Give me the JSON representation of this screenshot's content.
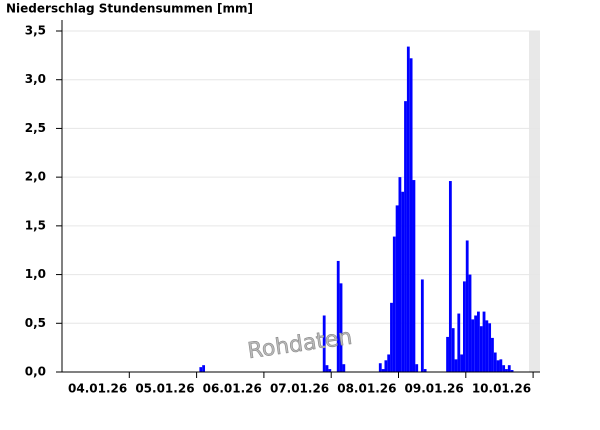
{
  "chart_data": {
    "type": "bar",
    "title": "Niederschlag Stundensummen [mm]",
    "annotation": "Rohdaten",
    "color": "#0000ff",
    "grid": true,
    "ylim": [
      0,
      3.5
    ],
    "yticks": [
      {
        "value": 0,
        "label": "0,0"
      },
      {
        "value": 0.5,
        "label": "0,5"
      },
      {
        "value": 1,
        "label": "1,0"
      },
      {
        "value": 1.5,
        "label": "1,5"
      },
      {
        "value": 2,
        "label": "2,0"
      },
      {
        "value": 2.5,
        "label": "2,5"
      },
      {
        "value": 3,
        "label": "3,0"
      },
      {
        "value": 3.5,
        "label": "3,5"
      }
    ],
    "days": [
      {
        "label": "04.01.26",
        "values": [
          0,
          0,
          0,
          0,
          0,
          0,
          0,
          0,
          0,
          0,
          0,
          0,
          0,
          0,
          0,
          0,
          0,
          0,
          0,
          0,
          0,
          0,
          0,
          0
        ]
      },
      {
        "label": "05.01.26",
        "values": [
          0,
          0,
          0,
          0,
          0,
          0,
          0,
          0,
          0,
          0,
          0,
          0,
          0,
          0,
          0,
          0,
          0,
          0,
          0,
          0,
          0,
          0,
          0,
          0
        ]
      },
      {
        "label": "06.01.26",
        "values": [
          0,
          0.05,
          0.07,
          0,
          0,
          0,
          0,
          0,
          0,
          0,
          0,
          0,
          0,
          0,
          0,
          0,
          0,
          0,
          0,
          0,
          0,
          0,
          0,
          0
        ]
      },
      {
        "label": "07.01.26",
        "values": [
          0,
          0,
          0,
          0,
          0,
          0,
          0,
          0,
          0,
          0,
          0,
          0,
          0,
          0,
          0,
          0,
          0,
          0,
          0,
          0,
          0,
          0.58,
          0.07,
          0.03
        ]
      },
      {
        "label": "08.01.26",
        "values": [
          0,
          0,
          1.14,
          0.91,
          0.08,
          0,
          0,
          0,
          0,
          0,
          0,
          0,
          0,
          0,
          0,
          0,
          0,
          0.09,
          0.03,
          0.12,
          0.18,
          0.71,
          1.39,
          1.71
        ]
      },
      {
        "label": "09.01.26",
        "values": [
          2.0,
          1.85,
          2.78,
          3.34,
          3.22,
          1.97,
          0.08,
          0,
          0.95,
          0.03,
          0,
          0,
          0,
          0,
          0,
          0,
          0,
          0.36,
          1.96,
          0.45,
          0.13,
          0.6,
          0.18,
          0.93
        ]
      },
      {
        "label": "10.01.26",
        "values": [
          1.35,
          1.0,
          0.54,
          0.58,
          0.62,
          0.47,
          0.62,
          0.53,
          0.5,
          0.35,
          0.2,
          0.12,
          0.13,
          0.07,
          0.03,
          0.07,
          0.02,
          0,
          0,
          0,
          0,
          0,
          0,
          0
        ]
      }
    ]
  }
}
